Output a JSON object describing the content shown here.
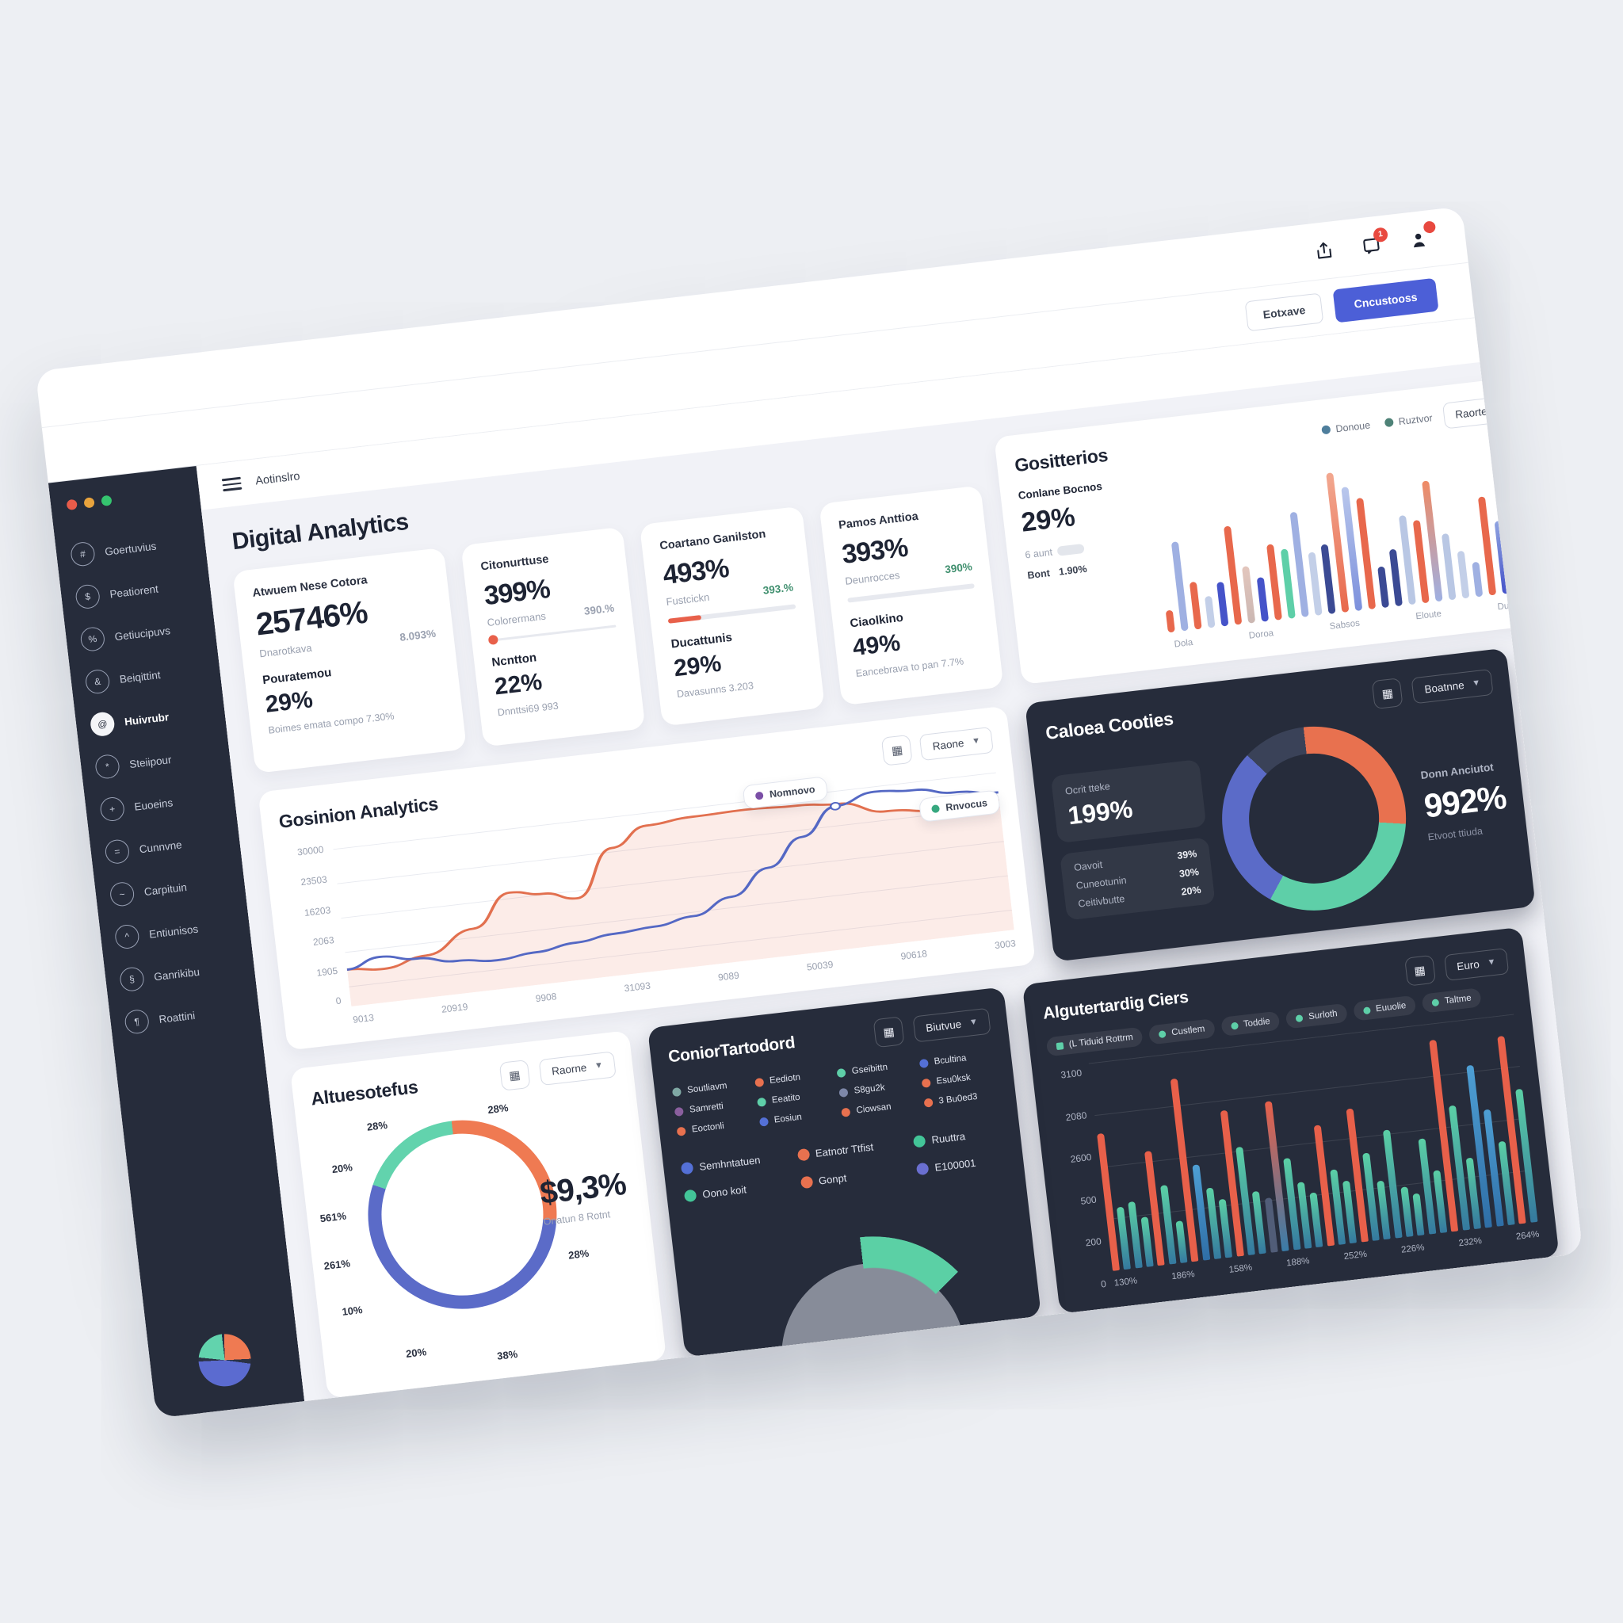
{
  "colors": {
    "accent": "#4c5fd7",
    "orange": "#e8684c",
    "teal": "#5ecfa8",
    "indigo": "#5b6bc8",
    "periwinkle": "#9fb0e2",
    "dark_card": "#262c3b",
    "badge_red": "#e8493f"
  },
  "topbar": {
    "notification_count": "1",
    "buttons": {
      "secondary": "Eotxave",
      "primary": "Cncustooss"
    }
  },
  "nav": {
    "title": "Aotinslro"
  },
  "page": {
    "title": "Digital Analytics"
  },
  "sidebar": {
    "items": [
      {
        "label": "Goertuvius",
        "active": false
      },
      {
        "label": "Peatiorent",
        "active": false
      },
      {
        "label": "Getiucipuvs",
        "active": false
      },
      {
        "label": "Beiqittint",
        "active": false
      },
      {
        "label": "Huivrubr",
        "active": true
      },
      {
        "label": "Steiipour",
        "active": false
      },
      {
        "label": "Euoeins",
        "active": false
      },
      {
        "label": "Cunnvne",
        "active": false
      },
      {
        "label": "Carpituin",
        "active": false
      },
      {
        "label": "Entiunisos",
        "active": false
      },
      {
        "label": "Ganrikibu",
        "active": false
      },
      {
        "label": "Roattini",
        "active": false
      }
    ]
  },
  "stat_cards": [
    {
      "title": "Atwuem Nese Cotora",
      "value": "25746%",
      "sub": "Dnarotkava",
      "side": "8.093%",
      "side_green": false,
      "progress": null,
      "label2": "Pouratemou",
      "value2": "29%",
      "footer": "Boimes emata compo 7.30%"
    },
    {
      "title": "Citonurttuse",
      "value": "399%",
      "sub": "Colorermans",
      "side": "390.%",
      "side_green": false,
      "progress": {
        "style": "dot",
        "pct": 2
      },
      "label2": "Ncntton",
      "value2": "22%",
      "footer": "Dnnttsi69 993"
    },
    {
      "title": "Coartano Ganilston",
      "value": "493%",
      "sub": "Fustcickn",
      "side": "393.%",
      "side_green": true,
      "progress": {
        "style": "fill",
        "pct": 26
      },
      "label2": "Ducattunis",
      "value2": "29%",
      "footer": "Davasunns 3.203"
    },
    {
      "title": "Pamos Anttioa",
      "value": "393%",
      "sub": "Deunrocces",
      "side": "390%",
      "side_green": true,
      "progress": {
        "style": "track",
        "pct": 0
      },
      "label2": "Ciaolkino",
      "value2": "49%",
      "footer": "Eancebrava to pan 7.7%"
    }
  ],
  "cards": {
    "gositterios": {
      "title": "Gositterios",
      "dropdown": "Raorte",
      "legend": [
        {
          "label": "Donoue",
          "color": "#4e7e9c"
        },
        {
          "label": "Ruztvor",
          "color": "#4e8277"
        }
      ],
      "stat_label": "Conlane Bocnos",
      "stat_value": "29%",
      "stat_sub": "6 aunt",
      "stat_foot_label": "Bont",
      "stat_foot_value": "1.90%"
    },
    "cosinion": {
      "title": "Gosinion Analytics",
      "dropdown": "Raone",
      "tooltip_primary": "Nomnovo",
      "tooltip_secondary": "Rnvocus"
    },
    "caloea": {
      "title": "Caloea Cooties",
      "dropdown": "Boatnne",
      "panel_label": "Ocrit tteke",
      "panel_value": "199%",
      "right_label": "Donn Anciutot",
      "right_value": "992%",
      "right_sub": "Etvoot ttiuda"
    },
    "altueso": {
      "title": "Altuesotefus",
      "dropdown": "Raorne",
      "center_value": "$9,3%",
      "center_sub": "Onatun 8 Rotnt"
    },
    "conior": {
      "title": "ConiorTartodord",
      "dropdown": "Biutvue"
    },
    "algut": {
      "title": "Algutertardig Ciers",
      "dropdown": "Euro"
    }
  },
  "chart_data": [
    {
      "id": "gositterios",
      "type": "bar",
      "categories": [
        "Dola",
        "Doroa",
        "Sabsos",
        "Eloute",
        "Duocuns"
      ],
      "bars": [
        {
          "v": 14,
          "c": "#e8684c"
        },
        {
          "v": 56,
          "c": "#9fb0e2"
        },
        {
          "v": 30,
          "c": "#e8684c"
        },
        {
          "v": 20,
          "c": "#c3cfe8"
        },
        {
          "v": 28,
          "c": "#4553c9"
        },
        {
          "v": 62,
          "c": "#e8684c"
        },
        {
          "v": 36,
          "g": [
            "#cbb7b2",
            "#e3c6bd"
          ]
        },
        {
          "v": 28,
          "c": "#4553c9"
        },
        {
          "v": 48,
          "c": "#e8684c"
        },
        {
          "v": 44,
          "c": "#5ecfa8"
        },
        {
          "v": 66,
          "c": "#9fb0e2"
        },
        {
          "v": 40,
          "c": "#c3cfe8"
        },
        {
          "v": 44,
          "c": "#3b4a94"
        },
        {
          "v": 88,
          "g": [
            "#e8684c",
            "#f2a890"
          ]
        },
        {
          "v": 78,
          "g": [
            "#7c90dc",
            "#b9c7ec"
          ]
        },
        {
          "v": 70,
          "c": "#e8684c"
        },
        {
          "v": 26,
          "c": "#3b4a94"
        },
        {
          "v": 36,
          "c": "#3b4a94"
        },
        {
          "v": 56,
          "c": "#b9c7e4"
        },
        {
          "v": 52,
          "c": "#e8684c"
        },
        {
          "v": 76,
          "g": [
            "#9fb0e2",
            "#ef8a64"
          ]
        },
        {
          "v": 42,
          "c": "#b9c7e4"
        },
        {
          "v": 30,
          "c": "#c3cfe8"
        },
        {
          "v": 22,
          "c": "#9fb0e2"
        },
        {
          "v": 62,
          "c": "#e8684c"
        },
        {
          "v": 46,
          "g": [
            "#4553c9",
            "#8fa3e0"
          ]
        },
        {
          "v": 72,
          "g": [
            "#6f87d8",
            "#aebfe8"
          ]
        },
        {
          "v": 74,
          "g": [
            "#8fa3de",
            "#c3cfec"
          ]
        }
      ]
    },
    {
      "id": "cosinion",
      "type": "line",
      "y_ticks": [
        "30000",
        "23503",
        "16203",
        "2063",
        "1905",
        "0"
      ],
      "x_ticks": [
        "9013",
        "20919",
        "9908",
        "31093",
        "9089",
        "50039",
        "90618",
        "3003"
      ],
      "series": [
        {
          "name": "primary",
          "color": "#e2704f",
          "points": [
            [
              0,
              265
            ],
            [
              55,
              272
            ],
            [
              120,
              255
            ],
            [
              195,
              212
            ],
            [
              255,
              148
            ],
            [
              305,
              158
            ],
            [
              355,
              175
            ],
            [
              415,
              82
            ],
            [
              470,
              45
            ],
            [
              540,
              38
            ],
            [
              620,
              36
            ],
            [
              700,
              40
            ],
            [
              760,
              46
            ],
            [
              830,
              72
            ],
            [
              910,
              82
            ],
            [
              1000,
              76
            ]
          ]
        },
        {
          "name": "secondary",
          "color": "#5468c4",
          "points": [
            [
              0,
              265
            ],
            [
              50,
              247
            ],
            [
              105,
              259
            ],
            [
              165,
              273
            ],
            [
              225,
              281
            ],
            [
              285,
              274
            ],
            [
              345,
              264
            ],
            [
              405,
              255
            ],
            [
              465,
              250
            ],
            [
              525,
              238
            ],
            [
              585,
              208
            ],
            [
              645,
              158
            ],
            [
              700,
              104
            ],
            [
              755,
              50
            ],
            [
              815,
              30
            ],
            [
              875,
              36
            ],
            [
              935,
              50
            ],
            [
              1000,
              60
            ]
          ]
        }
      ]
    },
    {
      "id": "caloea",
      "type": "pie",
      "segments": [
        {
          "label": "Oavoit",
          "value": "39%",
          "color": "#e8714f",
          "start": 0,
          "end": 100
        },
        {
          "label": "Cuneotunin",
          "value": "30%",
          "color": "#5ecfa8",
          "start": 100,
          "end": 215
        },
        {
          "label": "Ceitivbutte",
          "value": "20%",
          "color": "#5b6bc8",
          "start": 215,
          "end": 320
        },
        {
          "label": "",
          "value": "",
          "color": "#3a4258",
          "start": 320,
          "end": 360
        }
      ]
    },
    {
      "id": "altueso",
      "type": "pie",
      "ring_labels": [
        "28%",
        "28%",
        "20%",
        "561%",
        "261%",
        "10%",
        "20%",
        "38%",
        "28%"
      ],
      "segments": [
        {
          "color": "#ef7a52",
          "start": 0,
          "end": 100
        },
        {
          "color": "#5b6bc8",
          "start": 100,
          "end": 295
        },
        {
          "color": "#62d3ad",
          "start": 295,
          "end": 360
        }
      ]
    },
    {
      "id": "conior",
      "type": "pie",
      "legend": [
        {
          "label": "Soutliavm",
          "color": "#7fa8a4"
        },
        {
          "label": "Eediotn",
          "color": "#e8714f"
        },
        {
          "label": "Gseibittn",
          "color": "#5ecfa8"
        },
        {
          "label": "Bcultina",
          "color": "#5470d6"
        },
        {
          "label": "Samretti",
          "color": "#8a5f9e"
        },
        {
          "label": "Eeatito",
          "color": "#5ecfa8"
        },
        {
          "label": "S8gu2k",
          "color": "#7d87a8"
        },
        {
          "label": "Esu0ksk",
          "color": "#e8714f"
        },
        {
          "label": "Eoctonli",
          "color": "#e8714f"
        },
        {
          "label": "Eosiun",
          "color": "#5470d6"
        },
        {
          "label": "Ciowsan",
          "color": "#e8714f"
        },
        {
          "label": "3 Bu0ed3",
          "color": "#e8714f"
        }
      ],
      "legend2": [
        {
          "label": "Semhntatuen",
          "color": "#5470d6"
        },
        {
          "label": "Eatnotr Ttfist",
          "color": "#e8714f"
        },
        {
          "label": "Ruuttra",
          "color": "#43c598"
        },
        {
          "label": "Oono koit",
          "color": "#43c598"
        },
        {
          "label": "Gonpt",
          "color": "#e8714f"
        },
        {
          "label": "E100001",
          "color": "#6a6fd0"
        }
      ],
      "gauge": {
        "segments": [
          {
            "color": "#4d66d8",
            "start": -80,
            "end": -66
          },
          {
            "color": "#5bd0a5",
            "start": -66,
            "end": 52
          }
        ]
      }
    },
    {
      "id": "algut",
      "type": "bar",
      "legend": [
        "(L Tiduid Rottrm",
        "Custlem",
        "Toddie",
        "Surloth",
        "Euuolie",
        "Taltme"
      ],
      "y_ticks": [
        "3100",
        "2080",
        "2600",
        "500",
        "200",
        "0"
      ],
      "x_ticks": [
        "130%",
        "186%",
        "158%",
        "188%",
        "252%",
        "226%",
        "232%",
        "264%"
      ],
      "bars": [
        {
          "v": 66,
          "c": "red"
        },
        {
          "v": 30
        },
        {
          "v": 32
        },
        {
          "v": 24
        },
        {
          "v": 55,
          "c": "red"
        },
        {
          "v": 38
        },
        {
          "v": 20
        },
        {
          "v": 88,
          "c": "red"
        },
        {
          "v": 46,
          "c": "blue"
        },
        {
          "v": 34
        },
        {
          "v": 28
        },
        {
          "v": 70,
          "c": "red"
        },
        {
          "v": 52
        },
        {
          "v": 30
        },
        {
          "v": 26,
          "c": "slate"
        },
        {
          "v": 72,
          "c": "redg"
        },
        {
          "v": 44
        },
        {
          "v": 32
        },
        {
          "v": 26
        },
        {
          "v": 58,
          "c": "red"
        },
        {
          "v": 36
        },
        {
          "v": 30
        },
        {
          "v": 64,
          "c": "red"
        },
        {
          "v": 42
        },
        {
          "v": 28
        },
        {
          "v": 52
        },
        {
          "v": 24
        },
        {
          "v": 20
        },
        {
          "v": 46
        },
        {
          "v": 30
        },
        {
          "v": 92,
          "c": "red"
        },
        {
          "v": 60
        },
        {
          "v": 34
        },
        {
          "v": 78,
          "c": "blue"
        },
        {
          "v": 56,
          "c": "blue"
        },
        {
          "v": 40
        },
        {
          "v": 90,
          "c": "red"
        },
        {
          "v": 64
        }
      ]
    }
  ]
}
